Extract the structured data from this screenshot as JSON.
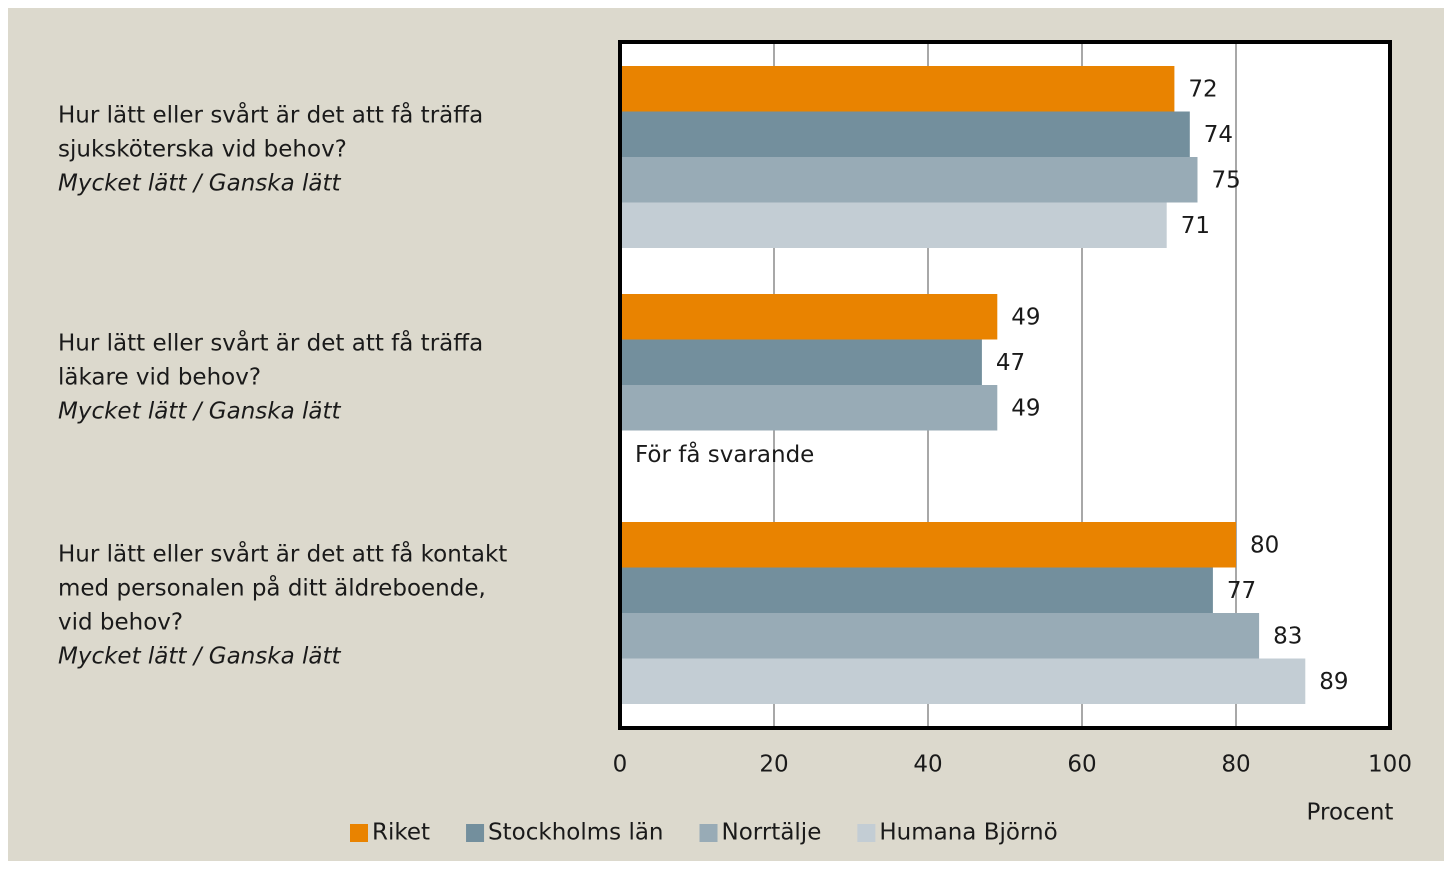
{
  "chart_data": {
    "type": "barh",
    "categories": [
      [
        "Hur lätt eller svårt är det att få träffa",
        "sjuksköterska vid behov?"
      ],
      [
        "Hur lätt eller svårt är det att få träffa",
        "läkare vid behov?"
      ],
      [
        "Hur lätt eller svårt är det att få kontakt",
        "med personalen på ditt äldreboende,",
        "vid behov?"
      ]
    ],
    "category_notes": [
      "Mycket lätt / Ganska lätt",
      "Mycket lätt / Ganska lätt",
      "Mycket lätt / Ganska lätt"
    ],
    "series": [
      {
        "name": "Riket",
        "color": "#e98300",
        "values": [
          72,
          49,
          80
        ]
      },
      {
        "name": "Stockholms län",
        "color": "#738f9d",
        "values": [
          74,
          47,
          77
        ]
      },
      {
        "name": "Norrtälje",
        "color": "#98abb6",
        "values": [
          75,
          49,
          83
        ]
      },
      {
        "name": "Humana Björnö",
        "color": "#c3cdd4",
        "values": [
          71,
          null,
          89
        ]
      }
    ],
    "missing_label": "För få svarande",
    "xlabel": "Procent",
    "xlim": [
      0,
      100
    ],
    "xticks": [
      0,
      20,
      40,
      60,
      80,
      100
    ],
    "grid": true
  }
}
